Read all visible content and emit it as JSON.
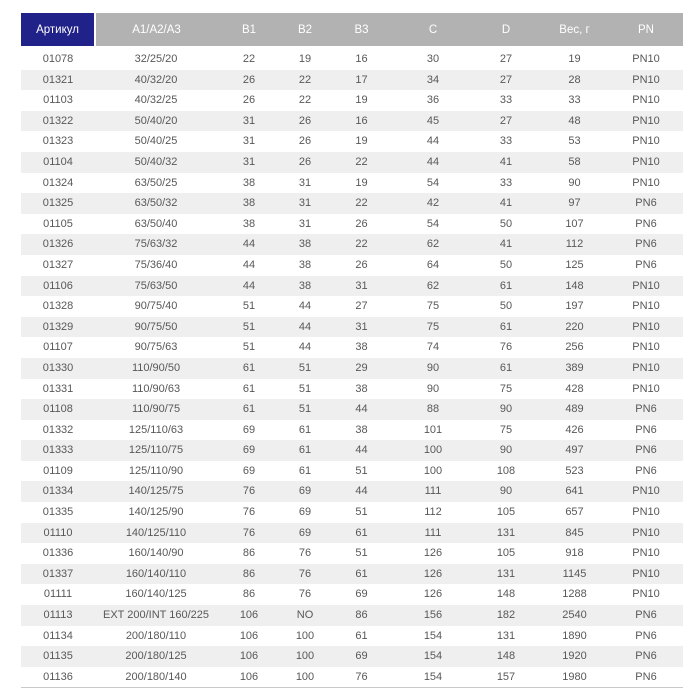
{
  "chart_data": {
    "type": "table",
    "columns": [
      {
        "key": "article",
        "label": "Артикул"
      },
      {
        "key": "a1-a2-a3",
        "label": "A1/A2/A3"
      },
      {
        "key": "b1",
        "label": "B1"
      },
      {
        "key": "b2",
        "label": "B2"
      },
      {
        "key": "b3",
        "label": "B3"
      },
      {
        "key": "c",
        "label": "C"
      },
      {
        "key": "d",
        "label": "D"
      },
      {
        "key": "weight-g",
        "label": "Вес, г"
      },
      {
        "key": "pn",
        "label": "PN"
      }
    ],
    "rows": [
      [
        "01078",
        "32/25/20",
        "22",
        "19",
        "16",
        "30",
        "27",
        "19",
        "PN10"
      ],
      [
        "01321",
        "40/32/20",
        "26",
        "22",
        "17",
        "34",
        "27",
        "28",
        "PN10"
      ],
      [
        "01103",
        "40/32/25",
        "26",
        "22",
        "19",
        "36",
        "33",
        "33",
        "PN10"
      ],
      [
        "01322",
        "50/40/20",
        "31",
        "26",
        "16",
        "45",
        "27",
        "48",
        "PN10"
      ],
      [
        "01323",
        "50/40/25",
        "31",
        "26",
        "19",
        "44",
        "33",
        "53",
        "PN10"
      ],
      [
        "01104",
        "50/40/32",
        "31",
        "26",
        "22",
        "44",
        "41",
        "58",
        "PN10"
      ],
      [
        "01324",
        "63/50/25",
        "38",
        "31",
        "19",
        "54",
        "33",
        "90",
        "PN10"
      ],
      [
        "01325",
        "63/50/32",
        "38",
        "31",
        "22",
        "42",
        "41",
        "97",
        "PN6"
      ],
      [
        "01105",
        "63/50/40",
        "38",
        "31",
        "26",
        "54",
        "50",
        "107",
        "PN6"
      ],
      [
        "01326",
        "75/63/32",
        "44",
        "38",
        "22",
        "62",
        "41",
        "112",
        "PN6"
      ],
      [
        "01327",
        "75/36/40",
        "44",
        "38",
        "26",
        "64",
        "50",
        "125",
        "PN6"
      ],
      [
        "01106",
        "75/63/50",
        "44",
        "38",
        "31",
        "62",
        "61",
        "148",
        "PN10"
      ],
      [
        "01328",
        "90/75/40",
        "51",
        "44",
        "27",
        "75",
        "50",
        "197",
        "PN10"
      ],
      [
        "01329",
        "90/75/50",
        "51",
        "44",
        "31",
        "75",
        "61",
        "220",
        "PN10"
      ],
      [
        "01107",
        "90/75/63",
        "51",
        "44",
        "38",
        "74",
        "76",
        "256",
        "PN10"
      ],
      [
        "01330",
        "110/90/50",
        "61",
        "51",
        "29",
        "90",
        "61",
        "389",
        "PN10"
      ],
      [
        "01331",
        "110/90/63",
        "61",
        "51",
        "38",
        "90",
        "75",
        "428",
        "PN10"
      ],
      [
        "01108",
        "110/90/75",
        "61",
        "51",
        "44",
        "88",
        "90",
        "489",
        "PN6"
      ],
      [
        "01332",
        "125/110/63",
        "69",
        "61",
        "38",
        "101",
        "75",
        "426",
        "PN6"
      ],
      [
        "01333",
        "125/110/75",
        "69",
        "61",
        "44",
        "100",
        "90",
        "497",
        "PN6"
      ],
      [
        "01109",
        "125/110/90",
        "69",
        "61",
        "51",
        "100",
        "108",
        "523",
        "PN6"
      ],
      [
        "01334",
        "140/125/75",
        "76",
        "69",
        "44",
        "111",
        "90",
        "641",
        "PN10"
      ],
      [
        "01335",
        "140/125/90",
        "76",
        "69",
        "51",
        "112",
        "105",
        "657",
        "PN10"
      ],
      [
        "01110",
        "140/125/110",
        "76",
        "69",
        "61",
        "111",
        "131",
        "845",
        "PN10"
      ],
      [
        "01336",
        "160/140/90",
        "86",
        "76",
        "51",
        "126",
        "105",
        "918",
        "PN10"
      ],
      [
        "01337",
        "160/140/110",
        "86",
        "76",
        "61",
        "126",
        "131",
        "1145",
        "PN10"
      ],
      [
        "01111",
        "160/140/125",
        "86",
        "76",
        "69",
        "126",
        "148",
        "1288",
        "PN10"
      ],
      [
        "01113",
        "EXT 200/INT 160/225",
        "106",
        "NO",
        "86",
        "156",
        "182",
        "2540",
        "PN6"
      ],
      [
        "01134",
        "200/180/110",
        "106",
        "100",
        "61",
        "154",
        "131",
        "1890",
        "PN6"
      ],
      [
        "01135",
        "200/180/125",
        "106",
        "100",
        "69",
        "154",
        "148",
        "1920",
        "PN6"
      ],
      [
        "01136",
        "200/180/140",
        "106",
        "100",
        "76",
        "154",
        "157",
        "1980",
        "PN6"
      ]
    ]
  },
  "colors": {
    "accent_header_bg": "#21218a",
    "header_bg": "#b2b2b2",
    "header_text": "#ffffff",
    "stripe_bg": "#efefef",
    "row_bg": "#ffffff",
    "data_text": "#58585a",
    "bottom_border": "#c9c9c9"
  }
}
